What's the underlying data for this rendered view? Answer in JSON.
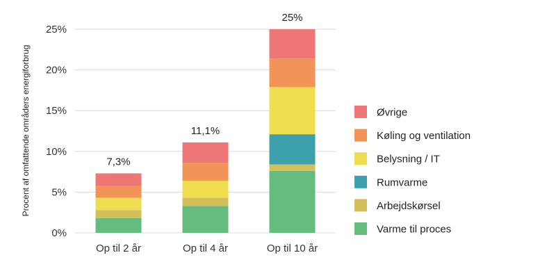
{
  "chart_data": {
    "type": "bar",
    "stacked": true,
    "categories": [
      "Op til 2 år",
      "Op til 4 år",
      "Op til 10 år"
    ],
    "totals": [
      "7,3%",
      "11,1%",
      "25%"
    ],
    "ylabel": "Procent af omfattende områders energiforbrug",
    "ylim": [
      0,
      25
    ],
    "yticks": [
      0,
      5,
      10,
      15,
      20,
      25
    ],
    "ytick_labels": [
      "0%",
      "5%",
      "10%",
      "15%",
      "20%",
      "25%"
    ],
    "grid": true,
    "legend_position": "right",
    "series": [
      {
        "name": "Varme til proces",
        "color": "#66bb7f",
        "values": [
          1.8,
          3.3,
          7.6
        ]
      },
      {
        "name": "Arbejdskørsel",
        "color": "#d4c05a",
        "values": [
          1.0,
          1.0,
          0.8
        ]
      },
      {
        "name": "Rumvarme",
        "color": "#3ca0ad",
        "values": [
          0.0,
          0.0,
          3.7
        ]
      },
      {
        "name": "Belysning / IT",
        "color": "#eedd4f",
        "values": [
          1.5,
          2.1,
          5.8
        ]
      },
      {
        "name": "Køling og ventilation",
        "color": "#f29457",
        "values": [
          1.5,
          2.2,
          3.5
        ]
      },
      {
        "name": "Øvrige",
        "color": "#ef7676",
        "values": [
          1.5,
          2.5,
          3.6
        ]
      }
    ]
  }
}
